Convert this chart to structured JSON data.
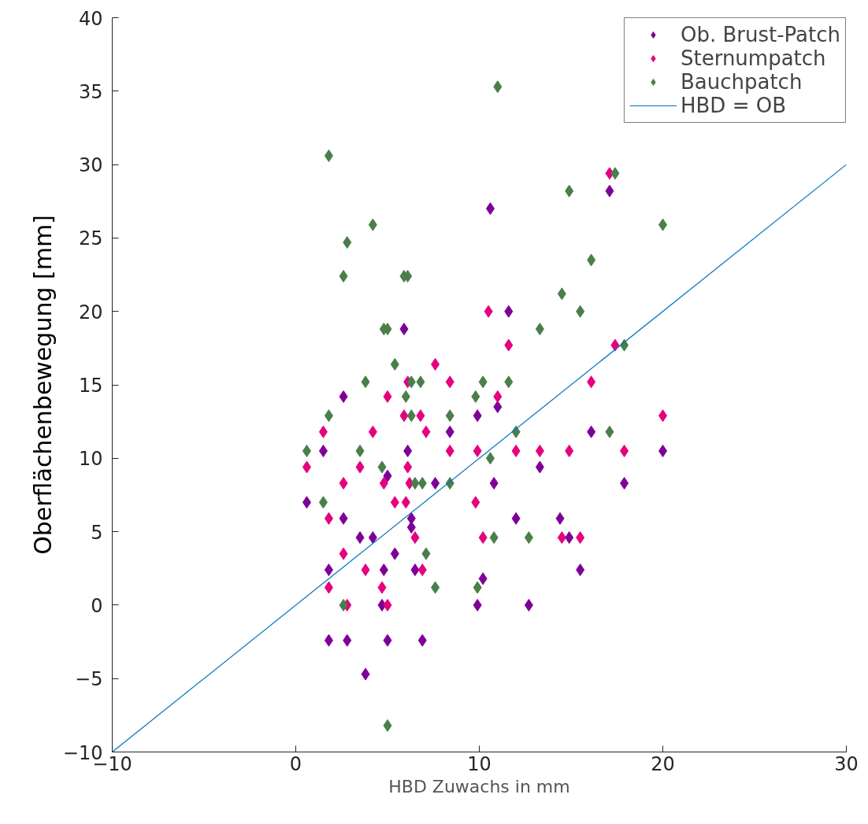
{
  "chart_data": {
    "type": "scatter",
    "xlabel": "HBD Zuwachs in mm",
    "ylabel": "Oberflächenbewegung [mm]",
    "xlim": [
      -10,
      30
    ],
    "ylim": [
      -10,
      40
    ],
    "xticks": [
      -10,
      0,
      10,
      20,
      30
    ],
    "yticks": [
      -10,
      -5,
      0,
      5,
      10,
      15,
      20,
      25,
      30,
      35,
      40
    ],
    "grid": false,
    "legend": "top right",
    "marker": "diamond",
    "series": [
      {
        "name": "Ob. Brust-Patch",
        "color": "#7e0098",
        "x": [
          0.6,
          1.5,
          1.8,
          1.8,
          2.6,
          2.6,
          2.8,
          3.5,
          4.2,
          3.8,
          4.8,
          5.0,
          4.7,
          5.0,
          5.4,
          5.9,
          6.1,
          6.3,
          6.3,
          6.5,
          7.6,
          6.9,
          8.4,
          9.9,
          9.9,
          10.2,
          10.6,
          10.8,
          11.0,
          11.6,
          12.0,
          12.7,
          13.3,
          14.4,
          14.9,
          15.5,
          16.1,
          17.1,
          17.9,
          20.0
        ],
        "values": [
          7.0,
          10.5,
          2.4,
          -2.4,
          14.2,
          5.9,
          -2.4,
          4.6,
          4.6,
          -4.7,
          2.4,
          8.8,
          0,
          -2.4,
          3.5,
          18.8,
          10.5,
          5.9,
          5.3,
          2.4,
          8.3,
          -2.4,
          11.8,
          12.9,
          0,
          1.8,
          27.0,
          8.3,
          13.5,
          20.0,
          5.9,
          0,
          9.4,
          5.9,
          4.6,
          2.4,
          11.8,
          28.2,
          8.3,
          10.5
        ]
      },
      {
        "name": "Sternumpatch",
        "color": "#e6007e",
        "x": [
          0.6,
          1.5,
          1.8,
          1.8,
          2.6,
          2.6,
          2.8,
          3.5,
          4.2,
          3.8,
          4.8,
          4.7,
          5.0,
          5.0,
          5.4,
          5.9,
          6.1,
          7.6,
          8.4,
          6.1,
          6.0,
          6.2,
          6.5,
          6.8,
          6.9,
          7.1,
          8.4,
          9.8,
          9.9,
          10.2,
          10.5,
          11.0,
          11.6,
          12.0,
          13.3,
          14.5,
          14.9,
          15.5,
          16.1,
          17.1,
          17.4,
          17.9,
          20.0
        ],
        "values": [
          9.4,
          11.8,
          5.9,
          1.2,
          8.3,
          3.5,
          0,
          9.4,
          11.8,
          2.4,
          8.3,
          1.2,
          14.2,
          0,
          7.0,
          12.9,
          15.2,
          16.4,
          15.2,
          9.4,
          7.0,
          8.3,
          4.6,
          12.9,
          2.4,
          11.8,
          10.5,
          7.0,
          10.5,
          4.6,
          20.0,
          14.2,
          17.7,
          10.5,
          10.5,
          4.6,
          10.5,
          4.6,
          15.2,
          29.4,
          17.7,
          10.5,
          12.9
        ]
      },
      {
        "name": "Bauchpatch",
        "color": "#4a7f4a",
        "x": [
          0.6,
          1.5,
          1.8,
          1.8,
          2.6,
          2.8,
          2.6,
          3.5,
          3.8,
          4.2,
          4.7,
          4.8,
          5.0,
          5.0,
          5.4,
          5.9,
          6.1,
          6.0,
          6.3,
          6.3,
          6.5,
          6.9,
          6.8,
          7.1,
          7.6,
          8.4,
          8.4,
          9.8,
          9.9,
          10.2,
          10.6,
          10.8,
          11.0,
          11.6,
          12.0,
          12.7,
          13.3,
          14.5,
          14.9,
          15.5,
          16.1,
          17.1,
          17.4,
          17.9,
          20.0
        ],
        "values": [
          10.5,
          7.0,
          12.9,
          30.6,
          22.4,
          24.7,
          0,
          10.5,
          15.2,
          25.9,
          9.4,
          18.8,
          18.8,
          -8.2,
          16.4,
          22.4,
          22.4,
          14.2,
          15.2,
          12.9,
          8.3,
          8.3,
          15.2,
          3.5,
          1.2,
          12.9,
          8.3,
          14.2,
          1.2,
          15.2,
          10.0,
          4.6,
          35.3,
          15.2,
          11.8,
          4.6,
          18.8,
          21.2,
          28.2,
          20.0,
          23.5,
          11.8,
          29.4,
          17.7,
          25.9
        ]
      },
      {
        "name": "HBD = OB",
        "type": "line",
        "color": "#0072bd",
        "line_style": "solid",
        "marker": "none",
        "x": [
          -10,
          30
        ],
        "values": [
          -10,
          30
        ]
      }
    ]
  }
}
